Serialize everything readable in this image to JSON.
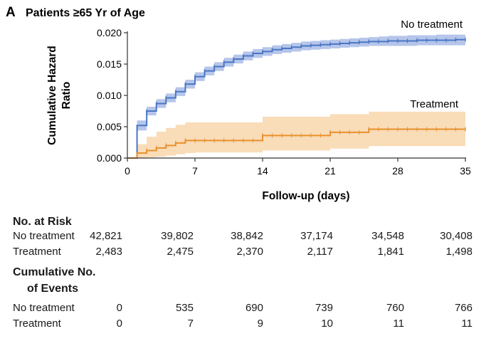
{
  "panel_letter": "A",
  "chart_data": {
    "type": "line",
    "title": "Patients ≥65 Yr of Age",
    "xlabel": "Follow-up (days)",
    "ylabel_lines": [
      "Cumulative Hazard",
      "Ratio"
    ],
    "xlim": [
      0,
      35
    ],
    "ylim": [
      0,
      0.02
    ],
    "xticks": [
      "0",
      "7",
      "14",
      "21",
      "28",
      "35"
    ],
    "yticks": [
      "0.000",
      "0.005",
      "0.010",
      "0.015",
      "0.020"
    ],
    "series": [
      {
        "name": "No treatment",
        "color": "#4a77c4",
        "band_color": "#aebfe8",
        "x": [
          0,
          1,
          2,
          3,
          4,
          5,
          6,
          7,
          8,
          9,
          10,
          11,
          12,
          13,
          14,
          15,
          16,
          17,
          18,
          19,
          20,
          21,
          22,
          23,
          24,
          25,
          26,
          27,
          28,
          29,
          30,
          31,
          32,
          33,
          34,
          35
        ],
        "y": [
          0,
          0.0052,
          0.0075,
          0.0087,
          0.0096,
          0.0106,
          0.0118,
          0.013,
          0.0139,
          0.0146,
          0.0153,
          0.0158,
          0.0163,
          0.0167,
          0.017,
          0.0173,
          0.0175,
          0.0177,
          0.0179,
          0.018,
          0.0181,
          0.0182,
          0.0183,
          0.0184,
          0.0185,
          0.0186,
          0.0186,
          0.0187,
          0.0187,
          0.0187,
          0.0188,
          0.0188,
          0.0188,
          0.0188,
          0.0189,
          0.0189
        ],
        "lower": [
          0,
          0.0044,
          0.0068,
          0.008,
          0.0089,
          0.0099,
          0.0111,
          0.0123,
          0.0132,
          0.0139,
          0.0146,
          0.0151,
          0.0156,
          0.016,
          0.0163,
          0.0166,
          0.0168,
          0.017,
          0.0172,
          0.0173,
          0.0174,
          0.0175,
          0.0176,
          0.0177,
          0.0178,
          0.0179,
          0.0179,
          0.0179,
          0.0179,
          0.0179,
          0.018,
          0.018,
          0.018,
          0.018,
          0.018,
          0.018
        ],
        "upper": [
          0,
          0.006,
          0.0082,
          0.0094,
          0.0103,
          0.0113,
          0.0125,
          0.0137,
          0.0146,
          0.0153,
          0.016,
          0.0165,
          0.017,
          0.0174,
          0.0177,
          0.018,
          0.0182,
          0.0184,
          0.0186,
          0.0187,
          0.0188,
          0.0189,
          0.019,
          0.0191,
          0.0192,
          0.0193,
          0.0194,
          0.0195,
          0.0195,
          0.0196,
          0.0196,
          0.0196,
          0.0197,
          0.0197,
          0.0197,
          0.0198
        ]
      },
      {
        "name": "Treatment",
        "color": "#e8912c",
        "band_color": "#f8d8b0",
        "x": [
          0,
          1,
          2,
          3,
          4,
          5,
          6,
          7,
          14,
          21,
          25,
          35
        ],
        "y": [
          0,
          0.0008,
          0.0012,
          0.0016,
          0.002,
          0.0024,
          0.0028,
          0.0028,
          0.0036,
          0.0041,
          0.0046,
          0.0046
        ],
        "lower": [
          0,
          0.0,
          0.0001,
          0.0002,
          0.0004,
          0.0006,
          0.0008,
          0.0009,
          0.0012,
          0.0015,
          0.0019,
          0.0019
        ],
        "upper": [
          0,
          0.0022,
          0.0034,
          0.0042,
          0.0048,
          0.0053,
          0.0057,
          0.0057,
          0.0066,
          0.007,
          0.0074,
          0.0074
        ]
      }
    ]
  },
  "risk_table": {
    "title": "No. at Risk",
    "rows": [
      {
        "label": "No treatment",
        "values": [
          "42,821",
          "39,802",
          "38,842",
          "37,174",
          "34,548",
          "30,408"
        ]
      },
      {
        "label": "Treatment",
        "values": [
          "2,483",
          "2,475",
          "2,370",
          "2,117",
          "1,841",
          "1,498"
        ]
      }
    ]
  },
  "events_table": {
    "title_lines": [
      "Cumulative No.",
      "of Events"
    ],
    "rows": [
      {
        "label": "No treatment",
        "values": [
          "0",
          "535",
          "690",
          "739",
          "760",
          "766"
        ]
      },
      {
        "label": "Treatment",
        "values": [
          "0",
          "7",
          "9",
          "10",
          "11",
          "11"
        ]
      }
    ]
  }
}
